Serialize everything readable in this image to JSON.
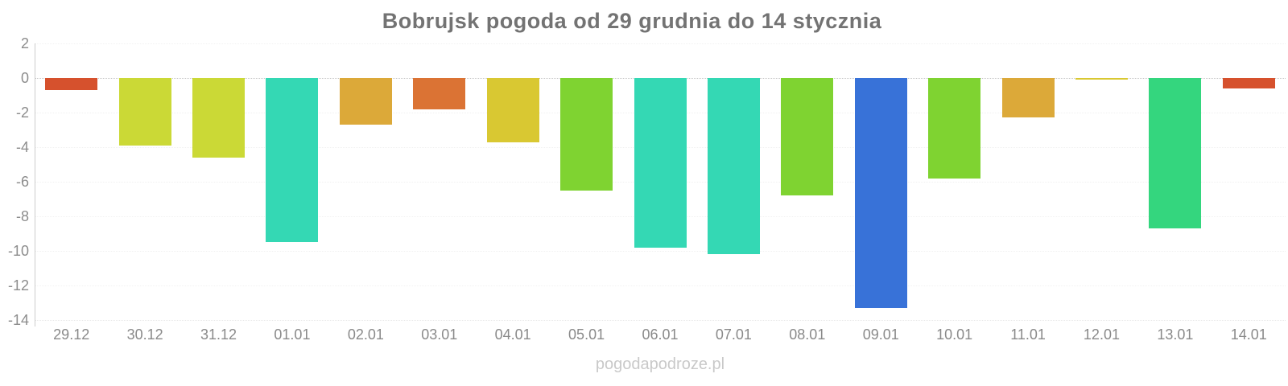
{
  "title": "Bobrujsk pogoda od 29 grudnia do 14 stycznia",
  "watermark": "pogodapodroze.pl",
  "chart_data": {
    "type": "bar",
    "title": "Bobrujsk pogoda od 29 grudnia do 14 stycznia",
    "xlabel": "",
    "ylabel": "",
    "categories": [
      "29.12",
      "30.12",
      "31.12",
      "01.01",
      "02.01",
      "03.01",
      "04.01",
      "05.01",
      "06.01",
      "07.01",
      "08.01",
      "09.01",
      "10.01",
      "11.01",
      "12.01",
      "13.01",
      "14.01"
    ],
    "values": [
      -0.7,
      -3.9,
      -4.6,
      -9.5,
      -2.7,
      -1.8,
      -3.7,
      -6.5,
      -9.8,
      -10.2,
      -6.8,
      -13.3,
      -5.8,
      -2.3,
      -0.1,
      -8.7,
      -0.6
    ],
    "bar_colors": [
      "#d6512d",
      "#cbd936",
      "#cbd936",
      "#34d8b4",
      "#dca939",
      "#db7334",
      "#d9c832",
      "#7fd331",
      "#34d8b4",
      "#34d8b4",
      "#7fd331",
      "#3872d8",
      "#7fd331",
      "#dca939",
      "#d9c832",
      "#34d67e",
      "#d6512d"
    ],
    "ylim": [
      -14,
      2
    ],
    "yticks": [
      2,
      0,
      -2,
      -4,
      -6,
      -8,
      -10,
      -12,
      -14
    ],
    "grid": "horizontal-dotted",
    "legend": "none",
    "zero_line": true,
    "colors": {
      "title_text": "#737373",
      "tick_text": "#8a8a8a",
      "axis_line": "#cccccc",
      "zero_gridline": "#c4c4c4",
      "faint_gridline": "#f1f1f1",
      "watermark_text": "#c9c9c9",
      "background": "#ffffff"
    }
  }
}
